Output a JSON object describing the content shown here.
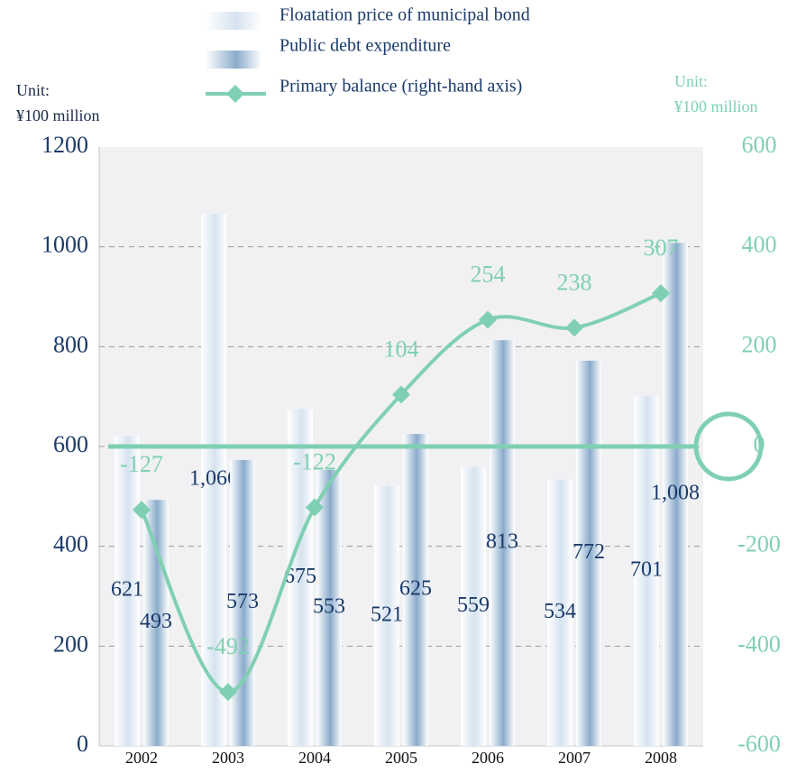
{
  "chart_data": {
    "type": "bar_line",
    "categories": [
      "2002",
      "2003",
      "2004",
      "2005",
      "2006",
      "2007",
      "2008"
    ],
    "series": [
      {
        "name": "Floatation price of municipal bond",
        "color": "#d6e3f0",
        "values": [
          621,
          1066,
          675,
          521,
          559,
          534,
          701
        ],
        "value_labels": [
          "621",
          "1,066",
          "675",
          "521",
          "559",
          "534",
          "701"
        ]
      },
      {
        "name": "Public debt expenditure",
        "color": "#8aabcb",
        "values": [
          493,
          573,
          553,
          625,
          813,
          772,
          1008
        ],
        "value_labels": [
          "493",
          "573",
          "553",
          "625",
          "813",
          "772",
          "1,008"
        ]
      },
      {
        "name": "Primary balance (right-hand axis)",
        "color": "#7fd0b2",
        "axis": "y2",
        "type": "line",
        "values": [
          -127,
          -492,
          -122,
          104,
          254,
          238,
          307
        ]
      }
    ],
    "y_unit": [
      "Unit:",
      "¥100 million"
    ],
    "y2_unit": [
      "Unit:",
      "¥100 million"
    ],
    "ylim": [
      0,
      1200
    ],
    "yticks": [
      0,
      200,
      400,
      600,
      800,
      1000,
      1200
    ],
    "y2lim": [
      -600,
      600
    ],
    "y2ticks": [
      -600,
      -400,
      -200,
      0,
      200,
      400,
      600
    ],
    "grid": true
  }
}
